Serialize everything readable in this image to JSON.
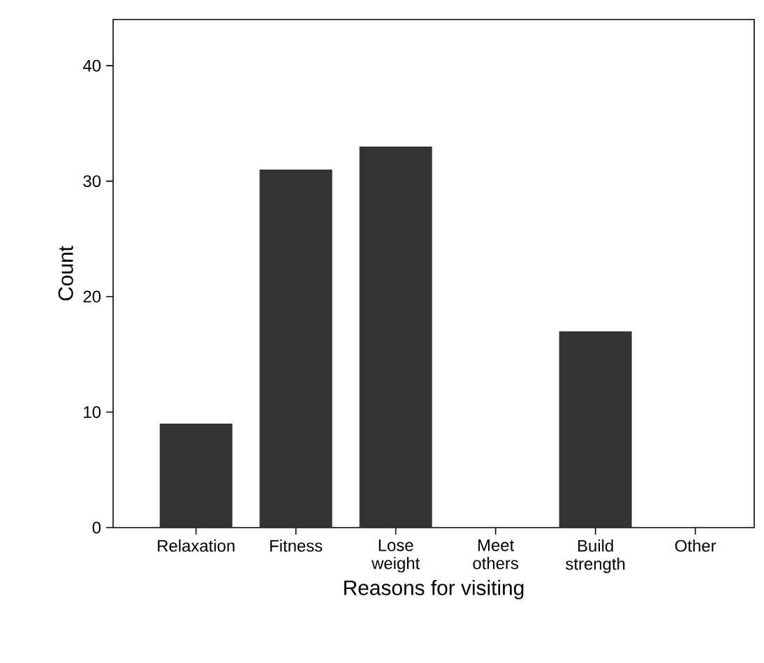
{
  "chart_data": {
    "type": "bar",
    "xlabel": "Reasons for visiting",
    "ylabel": "Count",
    "categories": [
      "Relaxation",
      "Fitness",
      "Lose weight",
      "Meet others",
      "Build strength",
      "Other"
    ],
    "values": [
      9,
      31,
      33,
      0,
      17,
      0
    ],
    "color": "#333333",
    "ylim": [
      0,
      44
    ],
    "yticks": [
      0,
      10,
      20,
      30,
      40
    ]
  }
}
